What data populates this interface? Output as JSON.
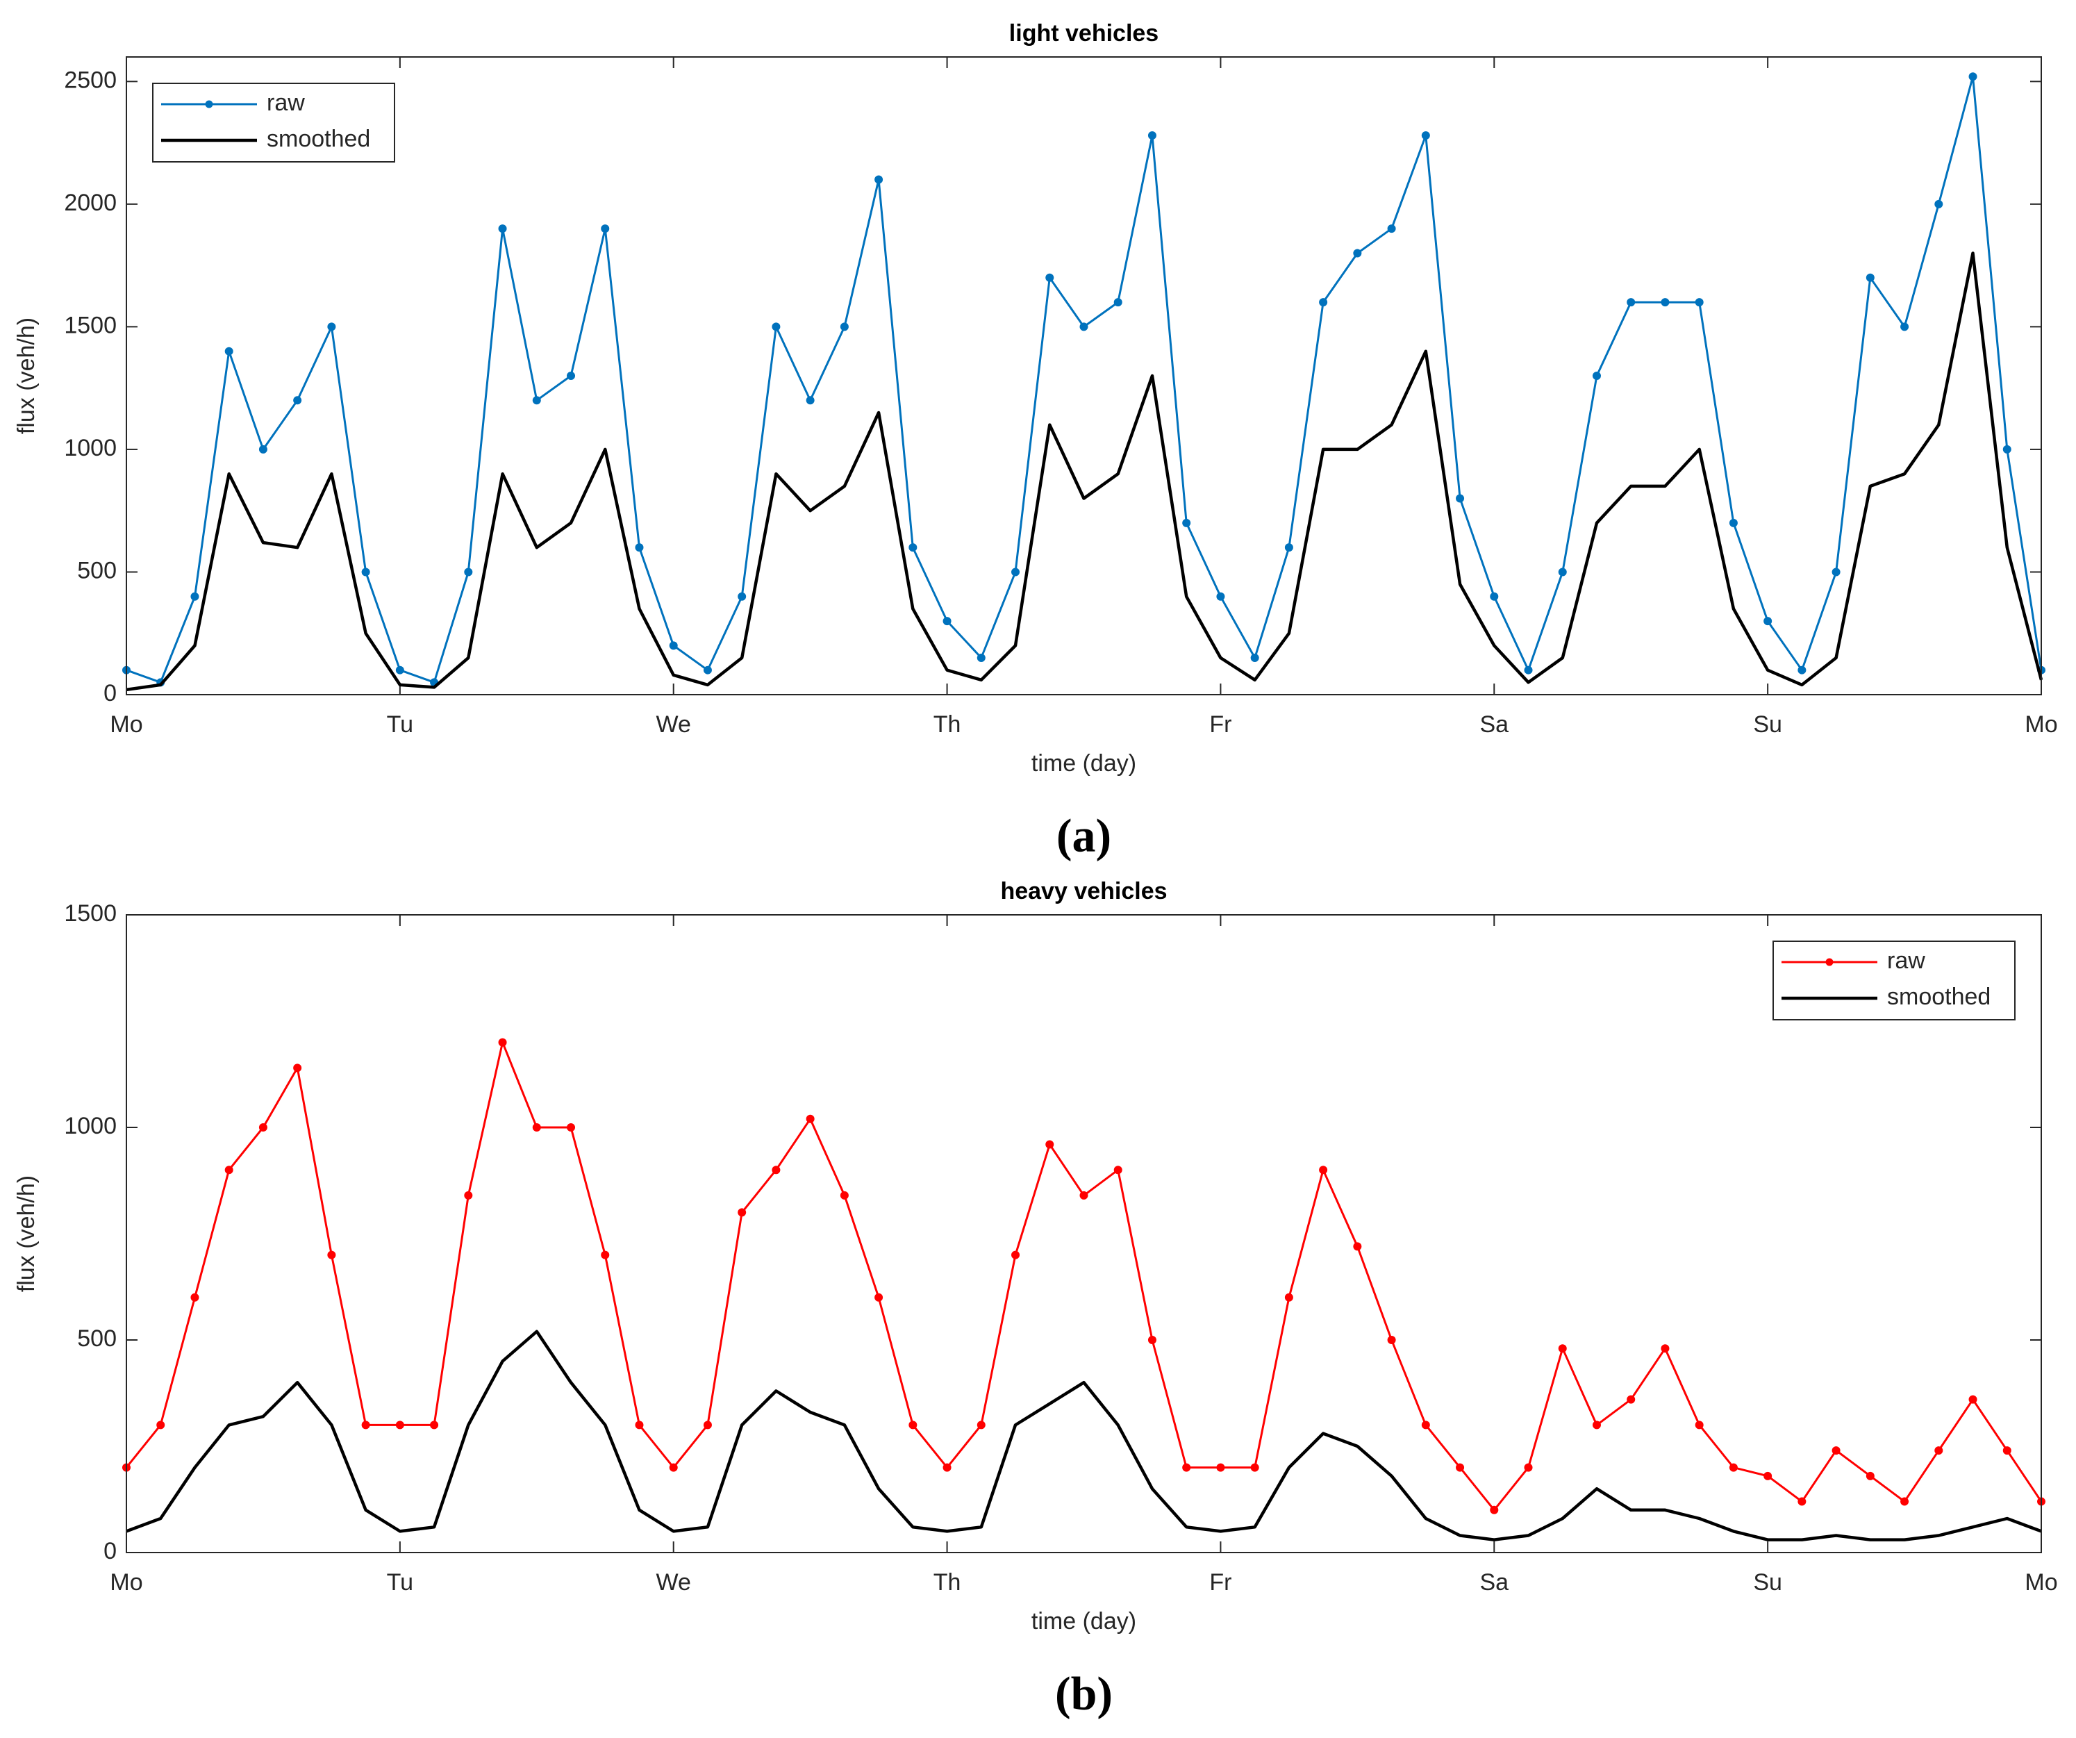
{
  "chart_data": [
    {
      "type": "line",
      "title": "light vehicles",
      "caption": "(a)",
      "xlabel": "time (day)",
      "ylabel": "flux (veh/h)",
      "xlim": [
        0,
        7
      ],
      "xticks": [
        {
          "value": 0,
          "label": "Mo"
        },
        {
          "value": 1,
          "label": "Tu"
        },
        {
          "value": 2,
          "label": "We"
        },
        {
          "value": 3,
          "label": "Th"
        },
        {
          "value": 4,
          "label": "Fr"
        },
        {
          "value": 5,
          "label": "Sa"
        },
        {
          "value": 6,
          "label": "Su"
        },
        {
          "value": 7,
          "label": "Mo"
        }
      ],
      "ylim": [
        0,
        2600
      ],
      "yticks": [
        0,
        500,
        1000,
        1500,
        2000,
        2500
      ],
      "legend": "upper left",
      "x": [
        0,
        0.125,
        0.25,
        0.375,
        0.5,
        0.625,
        0.75,
        0.875,
        1,
        1.125,
        1.25,
        1.375,
        1.5,
        1.625,
        1.75,
        1.875,
        2,
        2.125,
        2.25,
        2.375,
        2.5,
        2.625,
        2.75,
        2.875,
        3,
        3.125,
        3.25,
        3.375,
        3.5,
        3.625,
        3.75,
        3.875,
        4,
        4.125,
        4.25,
        4.375,
        4.5,
        4.625,
        4.75,
        4.875,
        5,
        5.125,
        5.25,
        5.375,
        5.5,
        5.625,
        5.75,
        5.875,
        6,
        6.125,
        6.25,
        6.375,
        6.5,
        6.625,
        6.75,
        6.875,
        7
      ],
      "series": [
        {
          "name": "raw",
          "color": "#0072bd",
          "marker": true,
          "values": [
            100,
            50,
            400,
            1400,
            1000,
            1200,
            1500,
            500,
            100,
            50,
            500,
            1900,
            1200,
            1300,
            1900,
            600,
            200,
            100,
            400,
            1500,
            1200,
            1500,
            2100,
            600,
            300,
            150,
            500,
            1700,
            1500,
            1600,
            2280,
            700,
            400,
            150,
            600,
            1600,
            1800,
            1900,
            2280,
            800,
            400,
            100,
            500,
            1300,
            1600,
            1600,
            1600,
            700,
            300,
            100,
            500,
            1700,
            1500,
            2000,
            2520,
            1000,
            100
          ]
        },
        {
          "name": "smoothed",
          "color": "#000000",
          "marker": false,
          "values": [
            20,
            40,
            200,
            900,
            620,
            600,
            900,
            250,
            40,
            30,
            150,
            900,
            600,
            700,
            1000,
            350,
            80,
            40,
            150,
            900,
            750,
            850,
            1150,
            350,
            100,
            60,
            200,
            1100,
            800,
            900,
            1300,
            400,
            150,
            60,
            250,
            1000,
            1000,
            1100,
            1400,
            450,
            200,
            50,
            150,
            700,
            850,
            850,
            1000,
            350,
            100,
            40,
            150,
            850,
            900,
            1100,
            1800,
            600,
            60
          ]
        }
      ]
    },
    {
      "type": "line",
      "title": "heavy vehicles",
      "caption": "(b)",
      "xlabel": "time (day)",
      "ylabel": "flux (veh/h)",
      "xlim": [
        0,
        7
      ],
      "xticks": [
        {
          "value": 0,
          "label": "Mo"
        },
        {
          "value": 1,
          "label": "Tu"
        },
        {
          "value": 2,
          "label": "We"
        },
        {
          "value": 3,
          "label": "Th"
        },
        {
          "value": 4,
          "label": "Fr"
        },
        {
          "value": 5,
          "label": "Sa"
        },
        {
          "value": 6,
          "label": "Su"
        },
        {
          "value": 7,
          "label": "Mo"
        }
      ],
      "ylim": [
        0,
        1500
      ],
      "yticks": [
        0,
        500,
        1000,
        1500
      ],
      "legend": "upper right",
      "x": [
        0,
        0.125,
        0.25,
        0.375,
        0.5,
        0.625,
        0.75,
        0.875,
        1,
        1.125,
        1.25,
        1.375,
        1.5,
        1.625,
        1.75,
        1.875,
        2,
        2.125,
        2.25,
        2.375,
        2.5,
        2.625,
        2.75,
        2.875,
        3,
        3.125,
        3.25,
        3.375,
        3.5,
        3.625,
        3.75,
        3.875,
        4,
        4.125,
        4.25,
        4.375,
        4.5,
        4.625,
        4.75,
        4.875,
        5,
        5.125,
        5.25,
        5.375,
        5.5,
        5.625,
        5.75,
        5.875,
        6,
        6.125,
        6.25,
        6.375,
        6.5,
        6.625,
        6.75,
        6.875,
        7
      ],
      "series": [
        {
          "name": "raw",
          "color": "#ff0000",
          "marker": true,
          "values": [
            200,
            300,
            600,
            900,
            1000,
            1140,
            700,
            300,
            300,
            300,
            840,
            1200,
            1000,
            1000,
            700,
            300,
            200,
            300,
            800,
            900,
            1020,
            840,
            600,
            300,
            200,
            300,
            700,
            960,
            840,
            900,
            500,
            200,
            200,
            200,
            600,
            900,
            720,
            500,
            300,
            200,
            100,
            200,
            480,
            300,
            360,
            480,
            300,
            200,
            180,
            120,
            240,
            180,
            120,
            240,
            360,
            240,
            120
          ]
        },
        {
          "name": "smoothed",
          "color": "#000000",
          "marker": false,
          "values": [
            50,
            80,
            200,
            300,
            320,
            400,
            300,
            100,
            50,
            60,
            300,
            450,
            520,
            400,
            300,
            100,
            50,
            60,
            300,
            380,
            330,
            300,
            150,
            60,
            50,
            60,
            300,
            350,
            400,
            300,
            150,
            60,
            50,
            60,
            200,
            280,
            250,
            180,
            80,
            40,
            30,
            40,
            80,
            150,
            100,
            100,
            80,
            50,
            30,
            30,
            40,
            30,
            30,
            40,
            60,
            80,
            50
          ]
        }
      ]
    }
  ]
}
